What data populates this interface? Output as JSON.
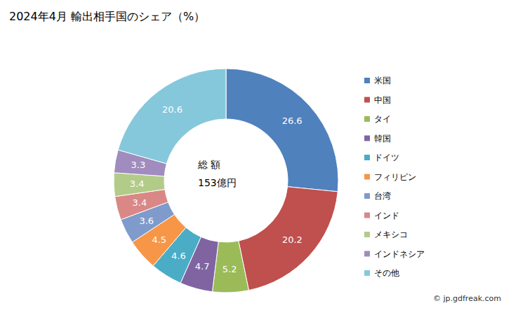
{
  "chart_data": {
    "type": "pie",
    "title": "2024年4月 輸出相手国のシェア（%）",
    "categories": [
      "米国",
      "中国",
      "タイ",
      "韓国",
      "ドイツ",
      "フィリピン",
      "台湾",
      "インド",
      "メキシコ",
      "インドネシア",
      "その他"
    ],
    "values": [
      26.6,
      20.2,
      5.2,
      4.7,
      4.6,
      4.5,
      3.6,
      3.4,
      3.4,
      3.3,
      20.6
    ],
    "colors": [
      "#4F81BD",
      "#C0504D",
      "#9BBB59",
      "#8064A2",
      "#4BACC6",
      "#F79646",
      "#7F9BCC",
      "#D98886",
      "#B3CB88",
      "#A08CBE",
      "#85C8DB"
    ],
    "data_labels": true,
    "legend": "right",
    "annotations": [
      "総 額",
      "153億円",
      "© jp.gdfreak.com"
    ]
  }
}
